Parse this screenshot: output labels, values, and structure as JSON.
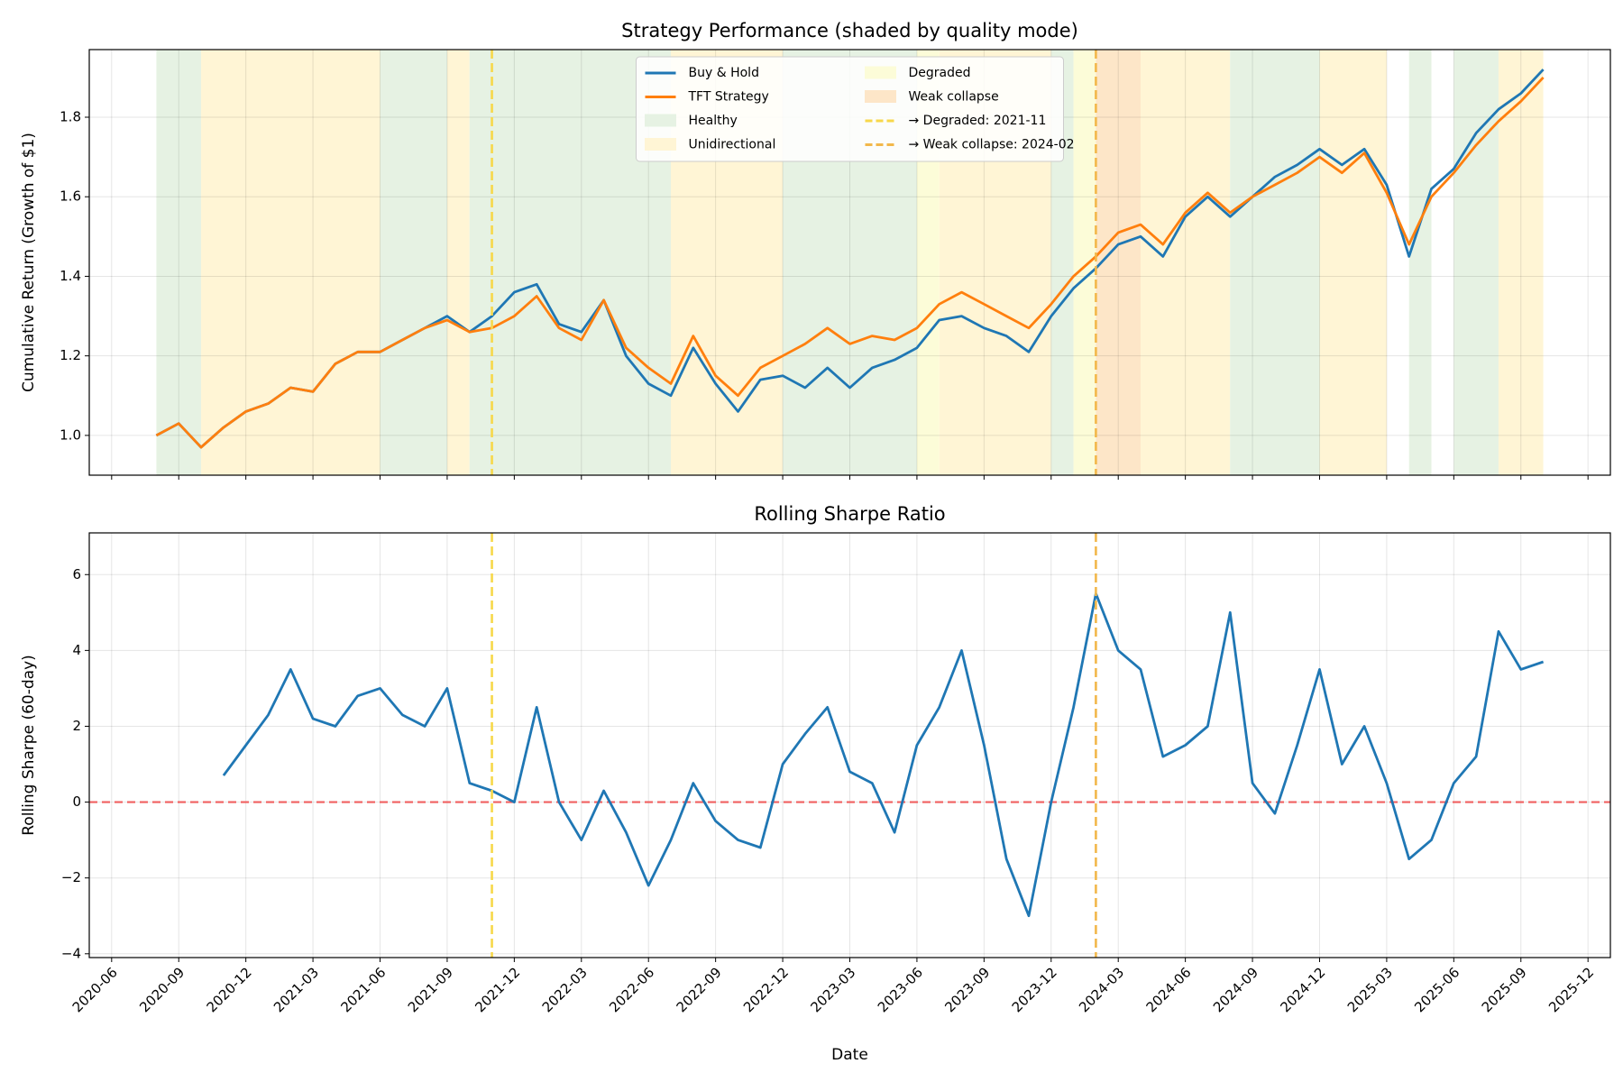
{
  "chart_data": [
    {
      "type": "line",
      "title": "Strategy Performance (shaded by quality mode)",
      "ylabel": "Cumulative Return (Growth of $1)",
      "x": [
        "2020-08",
        "2020-09",
        "2020-10",
        "2020-11",
        "2020-12",
        "2021-01",
        "2021-02",
        "2021-03",
        "2021-04",
        "2021-05",
        "2021-06",
        "2021-07",
        "2021-08",
        "2021-09",
        "2021-10",
        "2021-11",
        "2021-12",
        "2022-01",
        "2022-02",
        "2022-03",
        "2022-04",
        "2022-05",
        "2022-06",
        "2022-07",
        "2022-08",
        "2022-09",
        "2022-10",
        "2022-11",
        "2022-12",
        "2023-01",
        "2023-02",
        "2023-03",
        "2023-04",
        "2023-05",
        "2023-06",
        "2023-07",
        "2023-08",
        "2023-09",
        "2023-10",
        "2023-11",
        "2023-12",
        "2024-01",
        "2024-02",
        "2024-03",
        "2024-04",
        "2024-05",
        "2024-06",
        "2024-07",
        "2024-08",
        "2024-09",
        "2024-10",
        "2024-11",
        "2024-12",
        "2025-01",
        "2025-02",
        "2025-03",
        "2025-04",
        "2025-05",
        "2025-06",
        "2025-07",
        "2025-08",
        "2025-09",
        "2025-10"
      ],
      "series": [
        {
          "name": "Buy & Hold",
          "color": "#1f77b4",
          "values": [
            1.0,
            1.03,
            0.97,
            1.02,
            1.06,
            1.08,
            1.12,
            1.11,
            1.18,
            1.21,
            1.21,
            1.24,
            1.27,
            1.3,
            1.26,
            1.3,
            1.36,
            1.38,
            1.28,
            1.26,
            1.34,
            1.2,
            1.13,
            1.1,
            1.22,
            1.13,
            1.06,
            1.14,
            1.15,
            1.12,
            1.17,
            1.12,
            1.17,
            1.19,
            1.22,
            1.29,
            1.3,
            1.27,
            1.25,
            1.21,
            1.3,
            1.37,
            1.42,
            1.48,
            1.5,
            1.45,
            1.55,
            1.6,
            1.55,
            1.6,
            1.65,
            1.68,
            1.72,
            1.68,
            1.72,
            1.63,
            1.45,
            1.62,
            1.67,
            1.76,
            1.82,
            1.86,
            1.92
          ]
        },
        {
          "name": "TFT Strategy",
          "color": "#ff7f0e",
          "values": [
            1.0,
            1.03,
            0.97,
            1.02,
            1.06,
            1.08,
            1.12,
            1.11,
            1.18,
            1.21,
            1.21,
            1.24,
            1.27,
            1.29,
            1.26,
            1.27,
            1.3,
            1.35,
            1.27,
            1.24,
            1.34,
            1.22,
            1.17,
            1.13,
            1.25,
            1.15,
            1.1,
            1.17,
            1.2,
            1.23,
            1.27,
            1.23,
            1.25,
            1.24,
            1.27,
            1.33,
            1.36,
            1.33,
            1.3,
            1.27,
            1.33,
            1.4,
            1.45,
            1.51,
            1.53,
            1.48,
            1.56,
            1.61,
            1.56,
            1.6,
            1.63,
            1.66,
            1.7,
            1.66,
            1.71,
            1.61,
            1.48,
            1.6,
            1.66,
            1.73,
            1.79,
            1.84,
            1.9
          ]
        }
      ],
      "modes": [
        {
          "name": "Healthy",
          "color": "#e6f2e3"
        },
        {
          "name": "Unidirectional",
          "color": "#fff5d5"
        },
        {
          "name": "Degraded",
          "color": "#fcfcd8"
        },
        {
          "name": "Weak collapse",
          "color": "#fde6c8"
        }
      ],
      "regions": [
        {
          "start": "2020-08",
          "end": "2020-10",
          "mode": "Healthy"
        },
        {
          "start": "2020-10",
          "end": "2021-06",
          "mode": "Unidirectional"
        },
        {
          "start": "2021-06",
          "end": "2021-09",
          "mode": "Healthy"
        },
        {
          "start": "2021-09",
          "end": "2021-10",
          "mode": "Unidirectional"
        },
        {
          "start": "2021-10",
          "end": "2022-07",
          "mode": "Healthy"
        },
        {
          "start": "2022-07",
          "end": "2022-12",
          "mode": "Unidirectional"
        },
        {
          "start": "2022-12",
          "end": "2023-06",
          "mode": "Healthy"
        },
        {
          "start": "2023-06",
          "end": "2023-07",
          "mode": "Degraded"
        },
        {
          "start": "2023-07",
          "end": "2023-12",
          "mode": "Unidirectional"
        },
        {
          "start": "2023-12",
          "end": "2024-01",
          "mode": "Healthy"
        },
        {
          "start": "2024-01",
          "end": "2024-02",
          "mode": "Degraded"
        },
        {
          "start": "2024-02",
          "end": "2024-04",
          "mode": "Weak collapse"
        },
        {
          "start": "2024-04",
          "end": "2024-08",
          "mode": "Unidirectional"
        },
        {
          "start": "2024-08",
          "end": "2024-12",
          "mode": "Healthy"
        },
        {
          "start": "2024-12",
          "end": "2025-03",
          "mode": "Unidirectional"
        },
        {
          "start": "2025-04",
          "end": "2025-05",
          "mode": "Healthy"
        },
        {
          "start": "2025-06",
          "end": "2025-08",
          "mode": "Healthy"
        },
        {
          "start": "2025-08",
          "end": "2025-10",
          "mode": "Unidirectional"
        }
      ],
      "vlines": [
        {
          "x": "2021-11",
          "label": "→ Degraded: 2021-11",
          "color": "#f7d84a"
        },
        {
          "x": "2024-02",
          "label": "→ Weak collapse: 2024-02",
          "color": "#f2b84b"
        }
      ],
      "xlim": [
        "2020-05",
        "2026-01"
      ],
      "ylim": [
        0.9,
        1.97
      ],
      "yticks": [
        {
          "value": 1,
          "label": "1.0"
        },
        1.2,
        1.4,
        1.6,
        1.8
      ],
      "grid": true,
      "legend": "upper center"
    },
    {
      "type": "line",
      "title": "Rolling Sharpe Ratio",
      "ylabel": "Rolling Sharpe (60-day)",
      "xlabel": "Date",
      "x": [
        "2020-11",
        "2020-12",
        "2021-01",
        "2021-02",
        "2021-03",
        "2021-04",
        "2021-05",
        "2021-06",
        "2021-07",
        "2021-08",
        "2021-09",
        "2021-10",
        "2021-11",
        "2021-12",
        "2022-01",
        "2022-02",
        "2022-03",
        "2022-04",
        "2022-05",
        "2022-06",
        "2022-07",
        "2022-08",
        "2022-09",
        "2022-10",
        "2022-11",
        "2022-12",
        "2023-01",
        "2023-02",
        "2023-03",
        "2023-04",
        "2023-05",
        "2023-06",
        "2023-07",
        "2023-08",
        "2023-09",
        "2023-10",
        "2023-11",
        "2023-12",
        "2024-01",
        "2024-02",
        "2024-03",
        "2024-04",
        "2024-05",
        "2024-06",
        "2024-07",
        "2024-08",
        "2024-09",
        "2024-10",
        "2024-11",
        "2024-12",
        "2025-01",
        "2025-02",
        "2025-03",
        "2025-04",
        "2025-05",
        "2025-06",
        "2025-07",
        "2025-08",
        "2025-09",
        "2025-10"
      ],
      "series": [
        {
          "color": "#1f77b4",
          "values": [
            0.7,
            1.5,
            2.3,
            3.5,
            2.2,
            2.0,
            2.8,
            3.0,
            2.3,
            2.0,
            3.0,
            0.5,
            0.3,
            0.0,
            2.5,
            0.0,
            -1.0,
            0.3,
            -0.8,
            -2.2,
            -1.0,
            0.5,
            -0.5,
            -1.0,
            -1.2,
            1.0,
            1.8,
            2.5,
            0.8,
            0.5,
            -0.8,
            1.5,
            2.5,
            4.0,
            1.5,
            -1.5,
            -3.0,
            0.0,
            2.5,
            5.5,
            4.0,
            3.5,
            1.2,
            1.5,
            2.0,
            5.0,
            0.5,
            -0.3,
            1.5,
            3.5,
            1.0,
            2.0,
            0.5,
            -1.5,
            -1.0,
            0.5,
            1.2,
            4.5,
            3.5,
            3.7
          ]
        }
      ],
      "hline": {
        "y": 0,
        "color": "#f06060"
      },
      "vlines": [
        {
          "x": "2021-11",
          "color": "#f7d84a"
        },
        {
          "x": "2024-02",
          "color": "#f2b84b"
        }
      ],
      "xlim": [
        "2020-05",
        "2026-01"
      ],
      "ylim": [
        -4.1,
        7.1
      ],
      "yticks": [
        {
          "value": -4,
          "label": "−4"
        },
        {
          "value": -2,
          "label": "−2"
        },
        0,
        2,
        4,
        6
      ],
      "xticks": [
        "2020-06",
        "2020-09",
        "2020-12",
        "2021-03",
        "2021-06",
        "2021-09",
        "2021-12",
        "2022-03",
        "2022-06",
        "2022-09",
        "2022-12",
        "2023-03",
        "2023-06",
        "2023-09",
        "2023-12",
        "2024-03",
        "2024-06",
        "2024-09",
        "2024-12",
        "2025-03",
        "2025-06",
        "2025-09",
        "2025-12"
      ],
      "grid": true
    }
  ]
}
